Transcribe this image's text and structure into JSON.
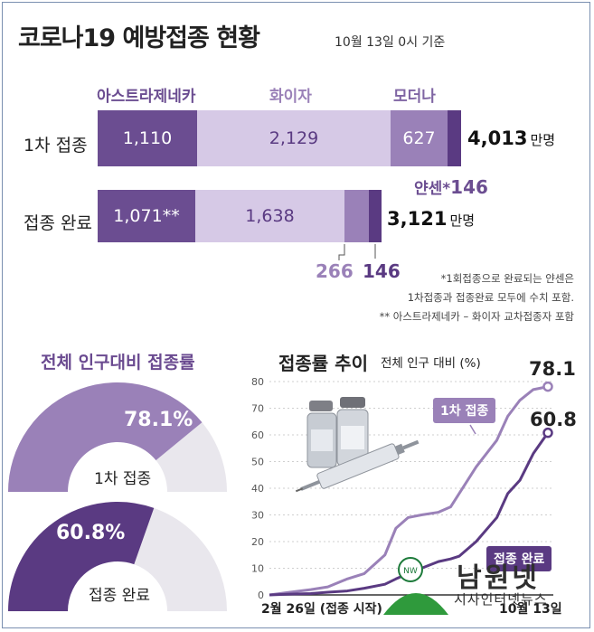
{
  "header": {
    "title": "코로나19 예방접종 현황",
    "date": "10월 13일 0시 기준"
  },
  "vaccines": {
    "az": "아스트라제네카",
    "pfizer": "화이자",
    "moderna": "모더나",
    "janssen": "얀센*"
  },
  "first_dose": {
    "label": "1차 접종",
    "az": "1,110",
    "pfizer": "2,129",
    "moderna": "627",
    "janssen": "146",
    "total": "4,013",
    "unit": "만명"
  },
  "completed": {
    "label": "접종 완료",
    "az": "1,071**",
    "pfizer": "1,638",
    "moderna": "266",
    "janssen": "146",
    "total": "3,121",
    "unit": "만명"
  },
  "notes": {
    "n1": "*1회접종으로 완료되는 얀센은",
    "n2": "1차접종과 접종완료 모두에 수치 포함.",
    "n3": "** 아스트라제네카 – 화이자 교차접종자 포함"
  },
  "gauge_section": {
    "title": "전체 인구대비 접종률",
    "first": {
      "value": "78.1%",
      "label": "1차 접종",
      "fraction": 0.781
    },
    "completed": {
      "value": "60.8%",
      "label": "접종 완료",
      "fraction": 0.608
    }
  },
  "trend": {
    "title": "접종률 추이",
    "subtitle": "전체 인구 대비 (%)",
    "end_first": "78.1",
    "end_completed": "60.8",
    "start_label": "2월 26일 (접종 시작)",
    "end_label": "10월 13일",
    "legend_first": "1차 접종",
    "legend_completed": "접종 완료"
  },
  "watermark": {
    "name": "남원넷",
    "sub": "시사인터넷뉴스"
  },
  "colors": {
    "dark": "#6b4d91",
    "mid": "#9a81b8",
    "light": "#d6c9e6",
    "deep": "#5a3a82",
    "gray": "#e9e7ed"
  },
  "chart_data": [
    {
      "type": "bar",
      "orientation": "horizontal-stacked",
      "unit": "만명",
      "categories": [
        "1차 접종",
        "접종 완료"
      ],
      "series": [
        {
          "name": "아스트라제네카",
          "values": [
            1110,
            1071
          ]
        },
        {
          "name": "화이자",
          "values": [
            2129,
            1638
          ]
        },
        {
          "name": "모더나",
          "values": [
            627,
            266
          ]
        },
        {
          "name": "얀센*",
          "values": [
            146,
            146
          ]
        }
      ],
      "totals": [
        4013,
        3121
      ]
    },
    {
      "type": "pie",
      "subtype": "half-donut",
      "unit": "%",
      "series": [
        {
          "name": "1차 접종",
          "values": [
            78.1
          ]
        },
        {
          "name": "접종 완료",
          "values": [
            60.8
          ]
        }
      ]
    },
    {
      "type": "line",
      "ylabel": "전체 인구 대비 (%)",
      "ylim": [
        0,
        80
      ],
      "yticks": [
        0,
        10,
        20,
        30,
        40,
        50,
        60,
        70,
        80
      ],
      "xlabel_start": "2월 26일 (접종 시작)",
      "xlabel_end": "10월 13일",
      "x": [
        "02-26",
        "03-15",
        "04-01",
        "04-15",
        "05-01",
        "05-15",
        "06-01",
        "06-10",
        "06-20",
        "07-01",
        "07-15",
        "07-25",
        "08-01",
        "08-15",
        "09-01",
        "09-10",
        "09-20",
        "10-01",
        "10-13"
      ],
      "series": [
        {
          "name": "1차 접종",
          "values": [
            0,
            1,
            2,
            3,
            6,
            8,
            15,
            25,
            29,
            30,
            31,
            33,
            38,
            48,
            58,
            67,
            73,
            77,
            78.1
          ]
        },
        {
          "name": "접종 완료",
          "values": [
            0,
            0.3,
            0.5,
            1,
            1.5,
            2.5,
            4,
            6,
            8,
            10,
            12.5,
            13.5,
            14.5,
            20,
            29,
            38,
            43,
            53,
            60.8
          ]
        }
      ]
    }
  ]
}
